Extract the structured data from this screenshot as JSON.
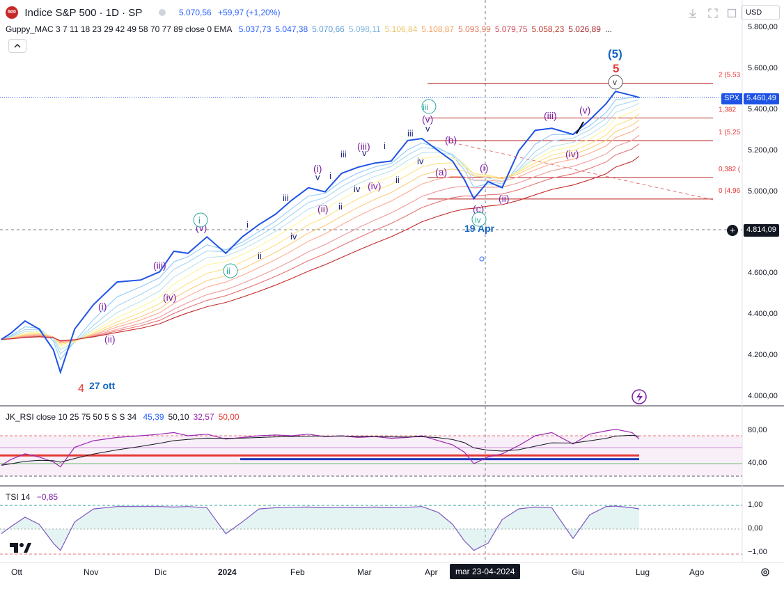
{
  "header": {
    "symbol_badge": "500",
    "title": "Indice S&P 500 · 1D · SP",
    "price": "5.070,56",
    "change": "+59,97 (+1,20%)",
    "currency": "USD"
  },
  "indicators": {
    "guppy": {
      "label": "Guppy_MAC 3 7 11 18 23 29 42 49 58 70 77 89 close 0 EMA",
      "values": [
        "5.037,73",
        "5.047,38",
        "5.070,66",
        "5.098,11",
        "5.106,84",
        "5.108,87",
        "5.093,99",
        "5.079,75",
        "5.058,23",
        "5.026,89"
      ],
      "value_colors": [
        "#2962ff",
        "#2962ff",
        "#5b9bd5",
        "#7fb8e0",
        "#e9c46a",
        "#f4a261",
        "#e07a5f",
        "#d1495b",
        "#c0392b",
        "#a5282f"
      ],
      "more": "..."
    },
    "rsi": {
      "label": "JK_RSI close 10 25 75 50 5 S S 34",
      "values": [
        "45,39",
        "50,10",
        "32,57",
        "50,00"
      ],
      "value_colors": [
        "#2962ff",
        "#131722",
        "#9c27b0",
        "#e53935"
      ],
      "y_ticks": [
        "80,00",
        "40,00"
      ]
    },
    "tsi": {
      "label": "TSI 14",
      "value": "−0,85",
      "y_ticks": [
        "1,00",
        "0,00",
        "−1,00"
      ]
    }
  },
  "price_axis": {
    "ticks": [
      "5.800,00",
      "5.600,00",
      "5.400,00",
      "5.200,00",
      "5.000,00",
      "4.600,00",
      "4.400,00",
      "4.200,00",
      "4.000,00"
    ],
    "spx_label": "SPX",
    "spx_price": "5.460,49",
    "crosshair_price": "4.814,09"
  },
  "time_axis": {
    "labels": [
      "Ott",
      "Nov",
      "Dic",
      "2024",
      "Feb",
      "Mar",
      "Apr",
      "Giu",
      "Lug",
      "Ago"
    ],
    "crosshair_date": "mar 23-04-2024"
  },
  "fib_levels": [
    {
      "label": "2 (5.53",
      "price": 5530
    },
    {
      "label": "1,382",
      "price": 5360
    },
    {
      "label": "1 (5.25",
      "price": 5250
    },
    {
      "label": "0,382 (",
      "price": 5070
    },
    {
      "label": "0 (4.96",
      "price": 4965
    }
  ],
  "annotations": {
    "wave4": "4",
    "wave4_date": "27 ott",
    "wave5_big": "(5)",
    "wave5_red": "5",
    "apr_low": "19 Apr"
  },
  "chart_data": {
    "type": "line",
    "x": [
      "2023-10-02",
      "2023-10-06",
      "2023-10-12",
      "2023-10-18",
      "2023-10-24",
      "2023-10-27",
      "2023-11-02",
      "2023-11-10",
      "2023-11-20",
      "2023-11-30",
      "2023-12-08",
      "2023-12-14",
      "2023-12-20",
      "2023-12-28",
      "2024-01-05",
      "2024-01-12",
      "2024-01-19",
      "2024-01-26",
      "2024-02-02",
      "2024-02-09",
      "2024-02-16",
      "2024-02-23",
      "2024-03-01",
      "2024-03-08",
      "2024-03-15",
      "2024-03-22",
      "2024-03-28",
      "2024-04-04",
      "2024-04-10",
      "2024-04-15",
      "2024-04-19",
      "2024-04-25",
      "2024-05-01",
      "2024-05-08",
      "2024-05-15",
      "2024-05-22",
      "2024-05-31",
      "2024-06-07",
      "2024-06-14",
      "2024-06-18",
      "2024-06-25",
      "2024-06-28"
    ],
    "series": [
      {
        "name": "SPX",
        "values": [
          4280,
          4310,
          4370,
          4330,
          4230,
          4120,
          4330,
          4450,
          4560,
          4570,
          4610,
          4710,
          4700,
          4780,
          4700,
          4780,
          4840,
          4890,
          4960,
          5020,
          5000,
          5090,
          5120,
          5140,
          5150,
          5250,
          5260,
          5200,
          5150,
          5060,
          4967,
          5050,
          5020,
          5200,
          5300,
          5310,
          5280,
          5350,
          5430,
          5490,
          5470,
          5460
        ]
      }
    ],
    "ylim": [
      4000,
      5850
    ],
    "rsi": [
      38,
      45,
      52,
      48,
      42,
      36,
      60,
      68,
      72,
      74,
      76,
      78,
      74,
      76,
      70,
      72,
      74,
      75,
      74,
      76,
      73,
      74,
      72,
      73,
      71,
      72,
      74,
      68,
      63,
      54,
      40,
      48,
      52,
      62,
      74,
      78,
      64,
      76,
      80,
      82,
      78,
      70
    ],
    "tsi": [
      -0.2,
      0.1,
      0.5,
      0.2,
      -0.6,
      -0.9,
      0.3,
      0.85,
      0.95,
      0.95,
      0.95,
      0.93,
      0.95,
      0.9,
      -0.2,
      0.3,
      0.85,
      0.9,
      0.92,
      0.93,
      0.9,
      0.92,
      0.9,
      0.93,
      0.9,
      0.92,
      0.95,
      0.7,
      0.2,
      -0.5,
      -0.9,
      -0.6,
      0.4,
      0.85,
      0.93,
      0.9,
      -0.4,
      0.6,
      0.95,
      0.97,
      0.9,
      0.85
    ]
  }
}
